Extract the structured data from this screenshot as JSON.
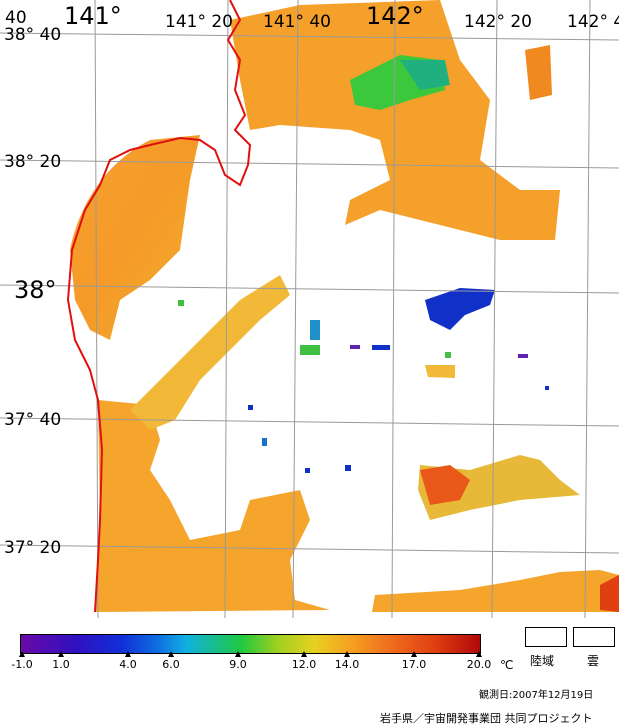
{
  "map": {
    "lon_labels": [
      {
        "text": "141°",
        "size": "big"
      },
      {
        "text": "141° 20",
        "size": "med"
      },
      {
        "text": "141° 40",
        "size": "med"
      },
      {
        "text": "142°",
        "size": "big"
      },
      {
        "text": "142° 20",
        "size": "med"
      },
      {
        "text": "142° 4",
        "size": "med"
      }
    ],
    "lat_labels": [
      {
        "text": "38° 40"
      },
      {
        "text": "38° 20"
      },
      {
        "text": "38°"
      },
      {
        "text": "37° 40"
      },
      {
        "text": "37° 20"
      }
    ],
    "corner_label": "40",
    "colors": {
      "coast": "#e01010",
      "grid": "#9a9a9a",
      "ocean_orange": "#f5a02a",
      "ocean_yellow": "#e8c23a",
      "ocean_green": "#3cc83c",
      "ocean_blue": "#1030c8"
    }
  },
  "colorbar": {
    "unit": "℃",
    "ticks": [
      "-1.0",
      "1.0",
      "4.0",
      "6.0",
      "9.0",
      "12.0",
      "14.0",
      "17.0",
      "20.0"
    ],
    "range": [
      -1.0,
      20.0
    ]
  },
  "legend": {
    "land": "陸域",
    "cloud": "雲"
  },
  "observation": "観測日:2007年12月19日",
  "credit": "岩手県／宇宙開発事業団 共同プロジェクト"
}
